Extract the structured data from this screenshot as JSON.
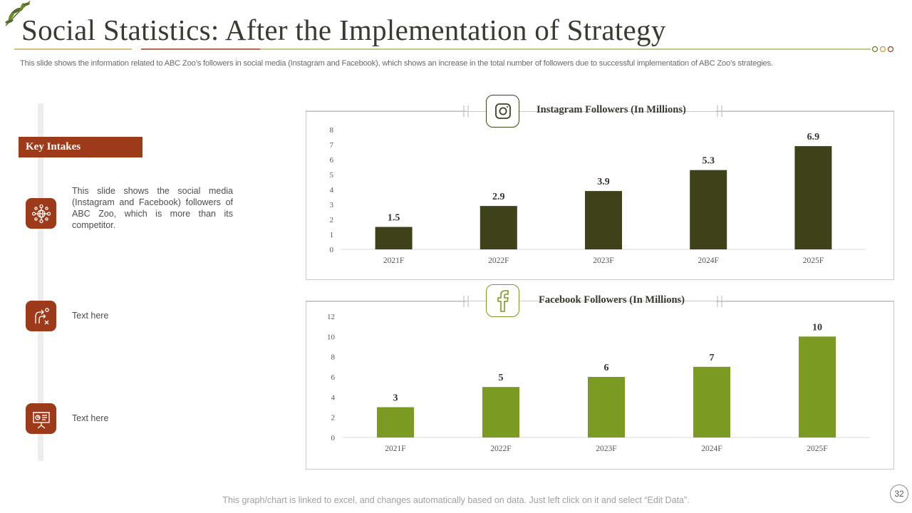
{
  "slide": {
    "title": "Social Statistics: After the Implementation of Strategy",
    "subtitle": "This slide shows the information related to ABC Zoo’s followers in social media (Instagram and Facebook), which shows an increase in the total number of followers due to successful implementation of ABC Zoo’s strategies.",
    "footnote": "This graph/chart is linked to excel, and changes automatically based on data.  Just left click on it and select “Edit Data”.",
    "page_number": "32"
  },
  "key_intakes": {
    "heading": "Key Intakes",
    "points": [
      {
        "icon": "globe-network-icon",
        "text": "This slide shows the social media (Instagram and Facebook) followers of ABC Zoo, which is more than its competitor."
      },
      {
        "icon": "strategy-board-icon",
        "text": "Text here"
      },
      {
        "icon": "presentation-board-icon",
        "text": "Text here"
      }
    ]
  },
  "icons": {
    "instagram": "instagram-icon",
    "facebook": "facebook-icon"
  },
  "colors": {
    "accent": "#9c3a1a",
    "instagram_bar": "#3f4219",
    "facebook_bar": "#7a9a21"
  },
  "chart_data": [
    {
      "type": "bar",
      "title": "Instagram Followers (In Millions)",
      "categories": [
        "2021F",
        "2022F",
        "2023F",
        "2024F",
        "2025F"
      ],
      "values": [
        1.5,
        2.9,
        3.9,
        5.3,
        6.9
      ],
      "ylim": [
        0,
        8
      ],
      "yticks": [
        0,
        1,
        2,
        3,
        4,
        5,
        6,
        7,
        8
      ],
      "xlabel": "",
      "ylabel": "",
      "grid": false,
      "legend": "none"
    },
    {
      "type": "bar",
      "title": "Facebook Followers (In Millions)",
      "categories": [
        "2021F",
        "2022F",
        "2023F",
        "2024F",
        "2025F"
      ],
      "values": [
        3,
        5,
        6,
        7,
        10
      ],
      "ylim": [
        0,
        12
      ],
      "yticks": [
        0,
        2,
        4,
        6,
        8,
        10,
        12
      ],
      "xlabel": "",
      "ylabel": "",
      "grid": false,
      "legend": "none"
    }
  ]
}
